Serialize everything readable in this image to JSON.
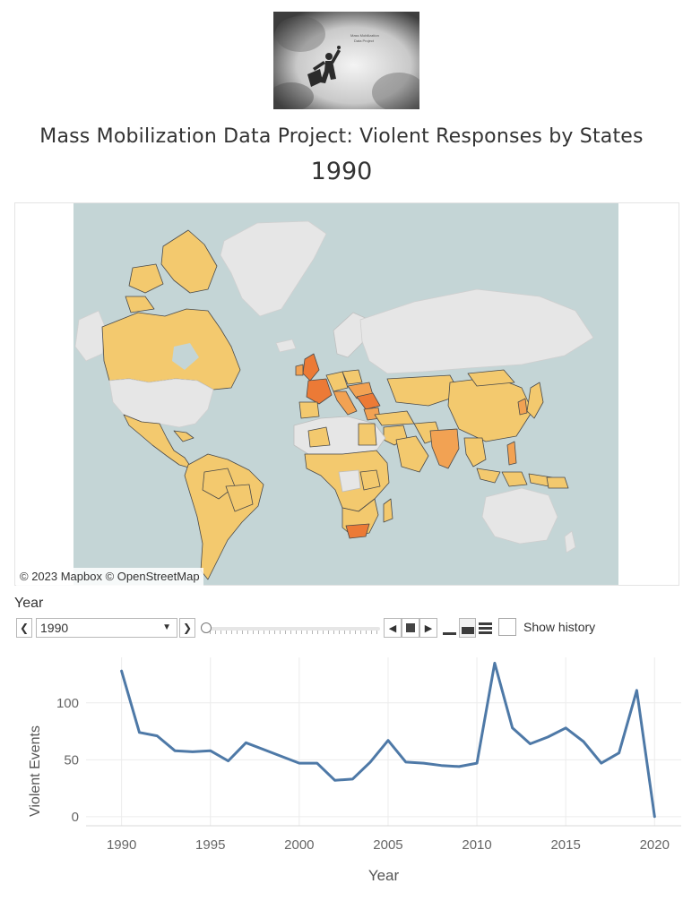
{
  "header": {
    "title": "Mass Mobilization Data Project: Violent Responses by States",
    "year": "1990"
  },
  "map": {
    "credit": "© 2023 Mapbox © OpenStreetMap",
    "colors": {
      "ocean": "#c4d5d6",
      "land": "#e6e6e6",
      "low": "#f3c96e",
      "mid": "#f2a253",
      "high": "#ec7a36",
      "border": "#4a4a4a"
    }
  },
  "year_filter": {
    "title": "Year",
    "value": "1990",
    "prev_icon": "chevron-left-icon",
    "next_icon": "chevron-right-icon",
    "show_history_label": "Show history",
    "show_history": false
  },
  "chart_data": {
    "type": "line",
    "title": "",
    "xlabel": "Year",
    "ylabel": "Violent Events",
    "xlim": [
      1988,
      2021.5
    ],
    "ylim": [
      -8,
      140
    ],
    "xticks": [
      1990,
      1995,
      2000,
      2005,
      2010,
      2015,
      2020
    ],
    "yticks": [
      0,
      50,
      100
    ],
    "color": "#4e79a7",
    "grid": true,
    "x": [
      1990,
      1991,
      1992,
      1993,
      1994,
      1995,
      1996,
      1997,
      1998,
      1999,
      2000,
      2001,
      2002,
      2003,
      2004,
      2005,
      2006,
      2007,
      2008,
      2009,
      2010,
      2011,
      2012,
      2013,
      2014,
      2015,
      2016,
      2017,
      2018,
      2019,
      2020
    ],
    "y": [
      128,
      74,
      71,
      58,
      57,
      58,
      49,
      65,
      59,
      53,
      47,
      47,
      32,
      33,
      48,
      67,
      48,
      47,
      45,
      44,
      47,
      135,
      78,
      64,
      70,
      78,
      66,
      47,
      56,
      111,
      0
    ]
  }
}
